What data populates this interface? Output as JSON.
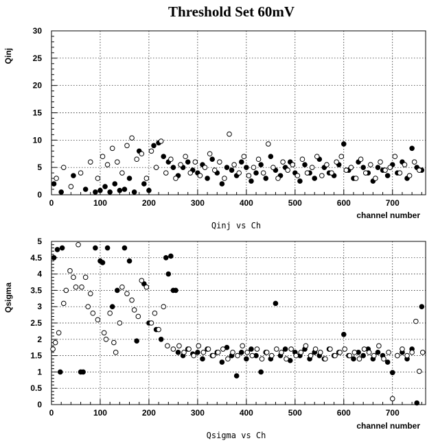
{
  "title": "Threshold Set 60mV",
  "chart_data": [
    {
      "type": "scatter",
      "ylabel": "Qinj",
      "xlabel": "channel number",
      "caption": "Qinj vs Ch",
      "xlim": [
        0,
        768
      ],
      "ylim": [
        0,
        30
      ],
      "xticks": [
        0,
        100,
        200,
        300,
        400,
        500,
        600,
        700
      ],
      "yticks": [
        0,
        5,
        10,
        15,
        20,
        25,
        30
      ],
      "grid": true,
      "series": [
        {
          "marker": "filled-circle",
          "x": [
            5,
            20,
            45,
            70,
            90,
            100,
            110,
            120,
            130,
            140,
            150,
            160,
            170,
            180,
            190,
            200,
            210,
            220,
            230,
            240,
            250,
            260,
            270,
            280,
            290,
            300,
            310,
            320,
            330,
            340,
            350,
            360,
            370,
            380,
            390,
            400,
            410,
            420,
            430,
            440,
            450,
            460,
            470,
            480,
            490,
            500,
            510,
            520,
            530,
            540,
            550,
            560,
            570,
            580,
            590,
            600,
            610,
            620,
            630,
            640,
            650,
            660,
            670,
            680,
            690,
            700,
            710,
            720,
            730,
            740,
            750,
            760
          ],
          "y": [
            2.0,
            0.5,
            3.5,
            1.0,
            0.5,
            0.8,
            1.5,
            0.5,
            2.0,
            0.8,
            1.0,
            3.0,
            0.5,
            8.0,
            2.0,
            0.8,
            9.0,
            9.5,
            7.0,
            6.0,
            5.0,
            3.5,
            5.0,
            6.0,
            4.5,
            4.0,
            5.5,
            3.0,
            6.5,
            4.0,
            2.0,
            5.0,
            4.5,
            3.5,
            6.0,
            5.0,
            2.5,
            4.0,
            5.5,
            3.0,
            7.0,
            4.5,
            3.5,
            5.0,
            6.0,
            4.0,
            2.5,
            5.5,
            4.0,
            3.0,
            6.5,
            5.0,
            4.0,
            3.5,
            5.5,
            9.3,
            4.5,
            3.0,
            6.0,
            5.0,
            4.0,
            2.5,
            5.0,
            4.5,
            3.5,
            5.5,
            4.0,
            6.0,
            3.0,
            8.5,
            5.0,
            4.5
          ]
        },
        {
          "marker": "open-circle",
          "x": [
            10,
            25,
            40,
            60,
            80,
            95,
            105,
            115,
            125,
            135,
            145,
            155,
            165,
            175,
            185,
            195,
            205,
            215,
            225,
            235,
            245,
            255,
            265,
            275,
            285,
            295,
            305,
            315,
            325,
            335,
            345,
            355,
            365,
            375,
            385,
            395,
            405,
            415,
            425,
            435,
            445,
            455,
            465,
            475,
            485,
            495,
            505,
            515,
            525,
            535,
            545,
            555,
            565,
            575,
            585,
            595,
            605,
            615,
            625,
            635,
            645,
            655,
            665,
            675,
            685,
            695,
            705,
            715,
            725,
            735,
            745,
            755
          ],
          "y": [
            3.0,
            5.0,
            1.5,
            4.0,
            6.0,
            3.0,
            7.0,
            5.5,
            8.5,
            6.0,
            4.0,
            9.0,
            10.4,
            6.5,
            7.5,
            3.0,
            8.0,
            5.0,
            9.8,
            4.0,
            6.5,
            3.0,
            5.5,
            7.0,
            4.0,
            6.0,
            3.5,
            5.0,
            7.5,
            4.5,
            6.0,
            3.0,
            11.1,
            5.5,
            4.0,
            7.0,
            3.5,
            5.0,
            6.5,
            4.0,
            9.3,
            5.0,
            3.0,
            6.0,
            4.5,
            5.5,
            3.5,
            6.5,
            4.0,
            5.0,
            7.0,
            3.5,
            5.5,
            4.0,
            6.0,
            7.0,
            4.5,
            5.0,
            3.0,
            6.5,
            4.0,
            5.5,
            3.0,
            6.0,
            4.5,
            5.0,
            7.0,
            4.0,
            5.5,
            3.5,
            6.0,
            4.5
          ]
        }
      ]
    },
    {
      "type": "scatter",
      "ylabel": "Qsigma",
      "xlabel": "channel number",
      "caption": "Qsigma vs Ch",
      "xlim": [
        0,
        768
      ],
      "ylim": [
        0,
        5
      ],
      "xticks": [
        0,
        100,
        200,
        300,
        400,
        500,
        600,
        700
      ],
      "yticks": [
        0,
        0.5,
        1,
        1.5,
        2,
        2.5,
        3,
        3.5,
        4,
        4.5,
        5
      ],
      "grid": true,
      "series": [
        {
          "marker": "filled-circle",
          "x": [
            5,
            12,
            18,
            22,
            60,
            65,
            90,
            100,
            105,
            115,
            125,
            135,
            150,
            160,
            175,
            190,
            200,
            215,
            225,
            235,
            240,
            245,
            250,
            255,
            260,
            270,
            280,
            290,
            300,
            310,
            320,
            330,
            340,
            350,
            360,
            370,
            380,
            390,
            400,
            410,
            420,
            430,
            440,
            450,
            460,
            470,
            480,
            490,
            500,
            510,
            520,
            530,
            540,
            550,
            560,
            570,
            580,
            590,
            600,
            610,
            620,
            630,
            640,
            650,
            660,
            670,
            680,
            690,
            700,
            710,
            720,
            730,
            740,
            750,
            760
          ],
          "y": [
            4.5,
            4.75,
            1.0,
            4.8,
            1.0,
            1.0,
            4.8,
            4.4,
            4.35,
            4.8,
            3.0,
            3.5,
            4.8,
            4.4,
            1.95,
            3.7,
            2.5,
            2.3,
            2.0,
            4.5,
            4.0,
            4.55,
            3.5,
            3.5,
            1.6,
            1.5,
            1.7,
            1.55,
            1.6,
            1.4,
            1.7,
            1.5,
            1.6,
            1.3,
            1.75,
            1.5,
            0.88,
            1.6,
            1.4,
            1.7,
            1.5,
            1.0,
            1.6,
            1.4,
            3.1,
            1.5,
            1.7,
            1.35,
            1.6,
            1.5,
            1.7,
            1.4,
            1.6,
            1.5,
            1.4,
            1.7,
            1.5,
            1.6,
            2.15,
            1.5,
            1.4,
            1.6,
            1.5,
            1.7,
            1.4,
            1.6,
            1.5,
            1.3,
            0.98,
            1.5,
            1.6,
            1.4,
            1.7,
            0.05,
            3.0
          ]
        },
        {
          "marker": "open-circle",
          "x": [
            3,
            8,
            15,
            25,
            30,
            38,
            45,
            50,
            55,
            62,
            70,
            75,
            80,
            85,
            95,
            108,
            112,
            120,
            128,
            132,
            140,
            145,
            155,
            165,
            170,
            178,
            185,
            195,
            205,
            212,
            220,
            230,
            238,
            250,
            262,
            272,
            282,
            292,
            302,
            312,
            322,
            332,
            342,
            352,
            362,
            372,
            382,
            392,
            402,
            412,
            422,
            432,
            442,
            452,
            462,
            472,
            482,
            492,
            502,
            512,
            522,
            532,
            542,
            552,
            562,
            572,
            582,
            592,
            602,
            612,
            622,
            632,
            642,
            652,
            662,
            672,
            682,
            692,
            700,
            710,
            720,
            730,
            740,
            748,
            755,
            762
          ],
          "y": [
            1.7,
            1.9,
            2.2,
            3.1,
            3.5,
            4.1,
            3.9,
            3.6,
            4.9,
            3.6,
            3.9,
            3.0,
            3.4,
            2.8,
            2.6,
            2.2,
            2.0,
            2.8,
            1.9,
            1.6,
            2.5,
            3.6,
            3.4,
            3.2,
            2.9,
            2.7,
            3.8,
            3.6,
            2.5,
            2.8,
            2.3,
            3.0,
            1.8,
            1.7,
            1.8,
            1.6,
            1.7,
            1.5,
            1.8,
            1.6,
            1.7,
            1.5,
            1.6,
            1.7,
            1.4,
            1.6,
            1.5,
            1.8,
            1.6,
            1.5,
            1.7,
            1.4,
            1.6,
            1.5,
            1.7,
            1.6,
            1.4,
            1.7,
            1.5,
            1.6,
            1.8,
            1.5,
            1.7,
            1.6,
            1.4,
            1.7,
            1.5,
            1.6,
            1.7,
            1.5,
            1.6,
            1.4,
            1.7,
            1.6,
            1.5,
            1.8,
            1.4,
            1.6,
            0.18,
            1.5,
            1.7,
            1.5,
            1.6,
            2.55,
            1.02,
            1.6
          ]
        }
      ]
    }
  ]
}
